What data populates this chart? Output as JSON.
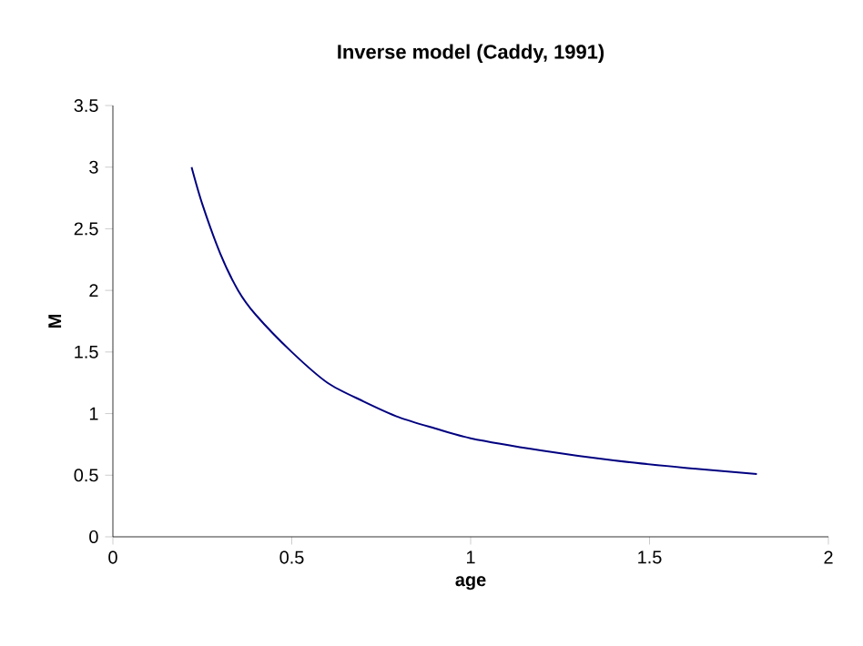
{
  "chart_data": {
    "type": "line",
    "title": "Inverse model (Caddy, 1991)",
    "xlabel": "age",
    "ylabel": "M",
    "x": [
      0.22,
      0.25,
      0.3,
      0.35,
      0.4,
      0.5,
      0.6,
      0.7,
      0.8,
      0.9,
      1.0,
      1.2,
      1.4,
      1.6,
      1.8
    ],
    "series": [
      {
        "color": "#000080",
        "values": [
          3.0,
          2.7,
          2.3,
          2.0,
          1.8,
          1.5,
          1.25,
          1.1,
          0.97,
          0.88,
          0.8,
          0.7,
          0.62,
          0.56,
          0.51
        ]
      }
    ],
    "xlim": [
      0,
      2
    ],
    "ylim": [
      0,
      3.5
    ],
    "xticks": [
      0,
      0.5,
      1,
      1.5,
      2
    ],
    "yticks": [
      0,
      0.5,
      1,
      1.5,
      2,
      2.5,
      3,
      3.5
    ],
    "grid": false,
    "marker": "none",
    "line_style": "solid"
  }
}
